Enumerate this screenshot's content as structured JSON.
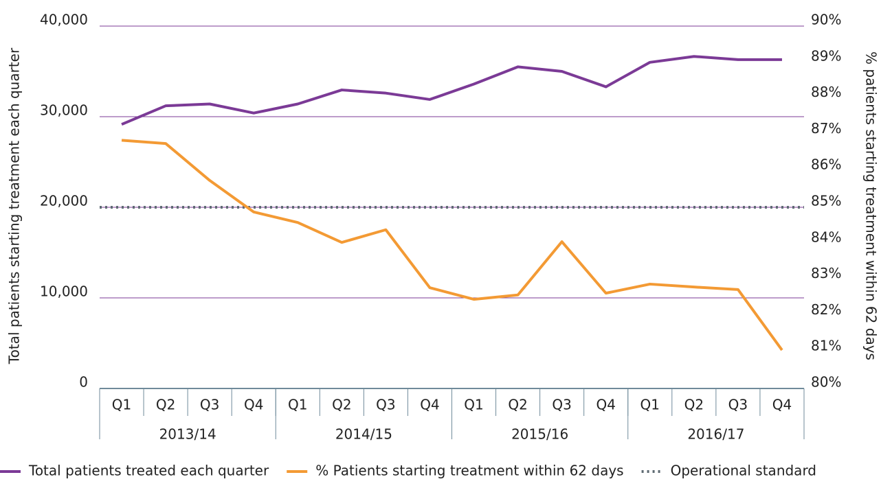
{
  "chart_data": {
    "type": "line",
    "categories": [
      "Q1",
      "Q2",
      "Q3",
      "Q4",
      "Q1",
      "Q2",
      "Q3",
      "Q4",
      "Q1",
      "Q2",
      "Q3",
      "Q4",
      "Q1",
      "Q2",
      "Q3",
      "Q4"
    ],
    "category_groups": [
      "2013/14",
      "2014/15",
      "2015/16",
      "2016/17"
    ],
    "series": [
      {
        "name": "Total patients treated each quarter",
        "color": "#7b3a96",
        "values": [
          29150,
          31200,
          31400,
          30400,
          31400,
          32950,
          32600,
          31900,
          33600,
          35500,
          35000,
          33300,
          36000,
          36650,
          36300,
          36300
        ]
      },
      {
        "name": "% Patients starting treatment within 62 days",
        "color": "#f39a34",
        "axis": "y2",
        "values": [
          86.85,
          86.76,
          85.74,
          84.87,
          84.58,
          84.03,
          84.38,
          82.78,
          82.46,
          82.58,
          84.05,
          82.63,
          82.88,
          82.8,
          82.73,
          81.06
        ]
      }
    ],
    "reference_lines": [
      {
        "name": "Operational standard",
        "value": 85,
        "axis": "y2",
        "color": "#5f6b73",
        "style": "dotted"
      }
    ],
    "ylabel": "Total patients starting treatment each quarter",
    "y2label": "% patients starting treatment within 62 days",
    "ylim": [
      0,
      40000
    ],
    "yticks": [
      0,
      {
        "value": 10000,
        "label": "10,000"
      },
      {
        "value": 20000,
        "label": "20,000"
      },
      {
        "value": 30000,
        "label": "30,000"
      },
      {
        "value": 40000,
        "label": "40,000"
      }
    ],
    "y2lim": [
      80,
      90
    ],
    "y2ticks": [
      {
        "value": 80,
        "label": "80%"
      },
      {
        "value": 81,
        "label": "81%"
      },
      {
        "value": 82,
        "label": "82%"
      },
      {
        "value": 83,
        "label": "83%"
      },
      {
        "value": 84,
        "label": "84%"
      },
      {
        "value": 85,
        "label": "85%"
      },
      {
        "value": 86,
        "label": "86%"
      },
      {
        "value": 87,
        "label": "87%"
      },
      {
        "value": 88,
        "label": "88%"
      },
      {
        "value": 89,
        "label": "89%"
      },
      {
        "value": 90,
        "label": "90%"
      }
    ],
    "grid": true,
    "legend": "bottom"
  }
}
